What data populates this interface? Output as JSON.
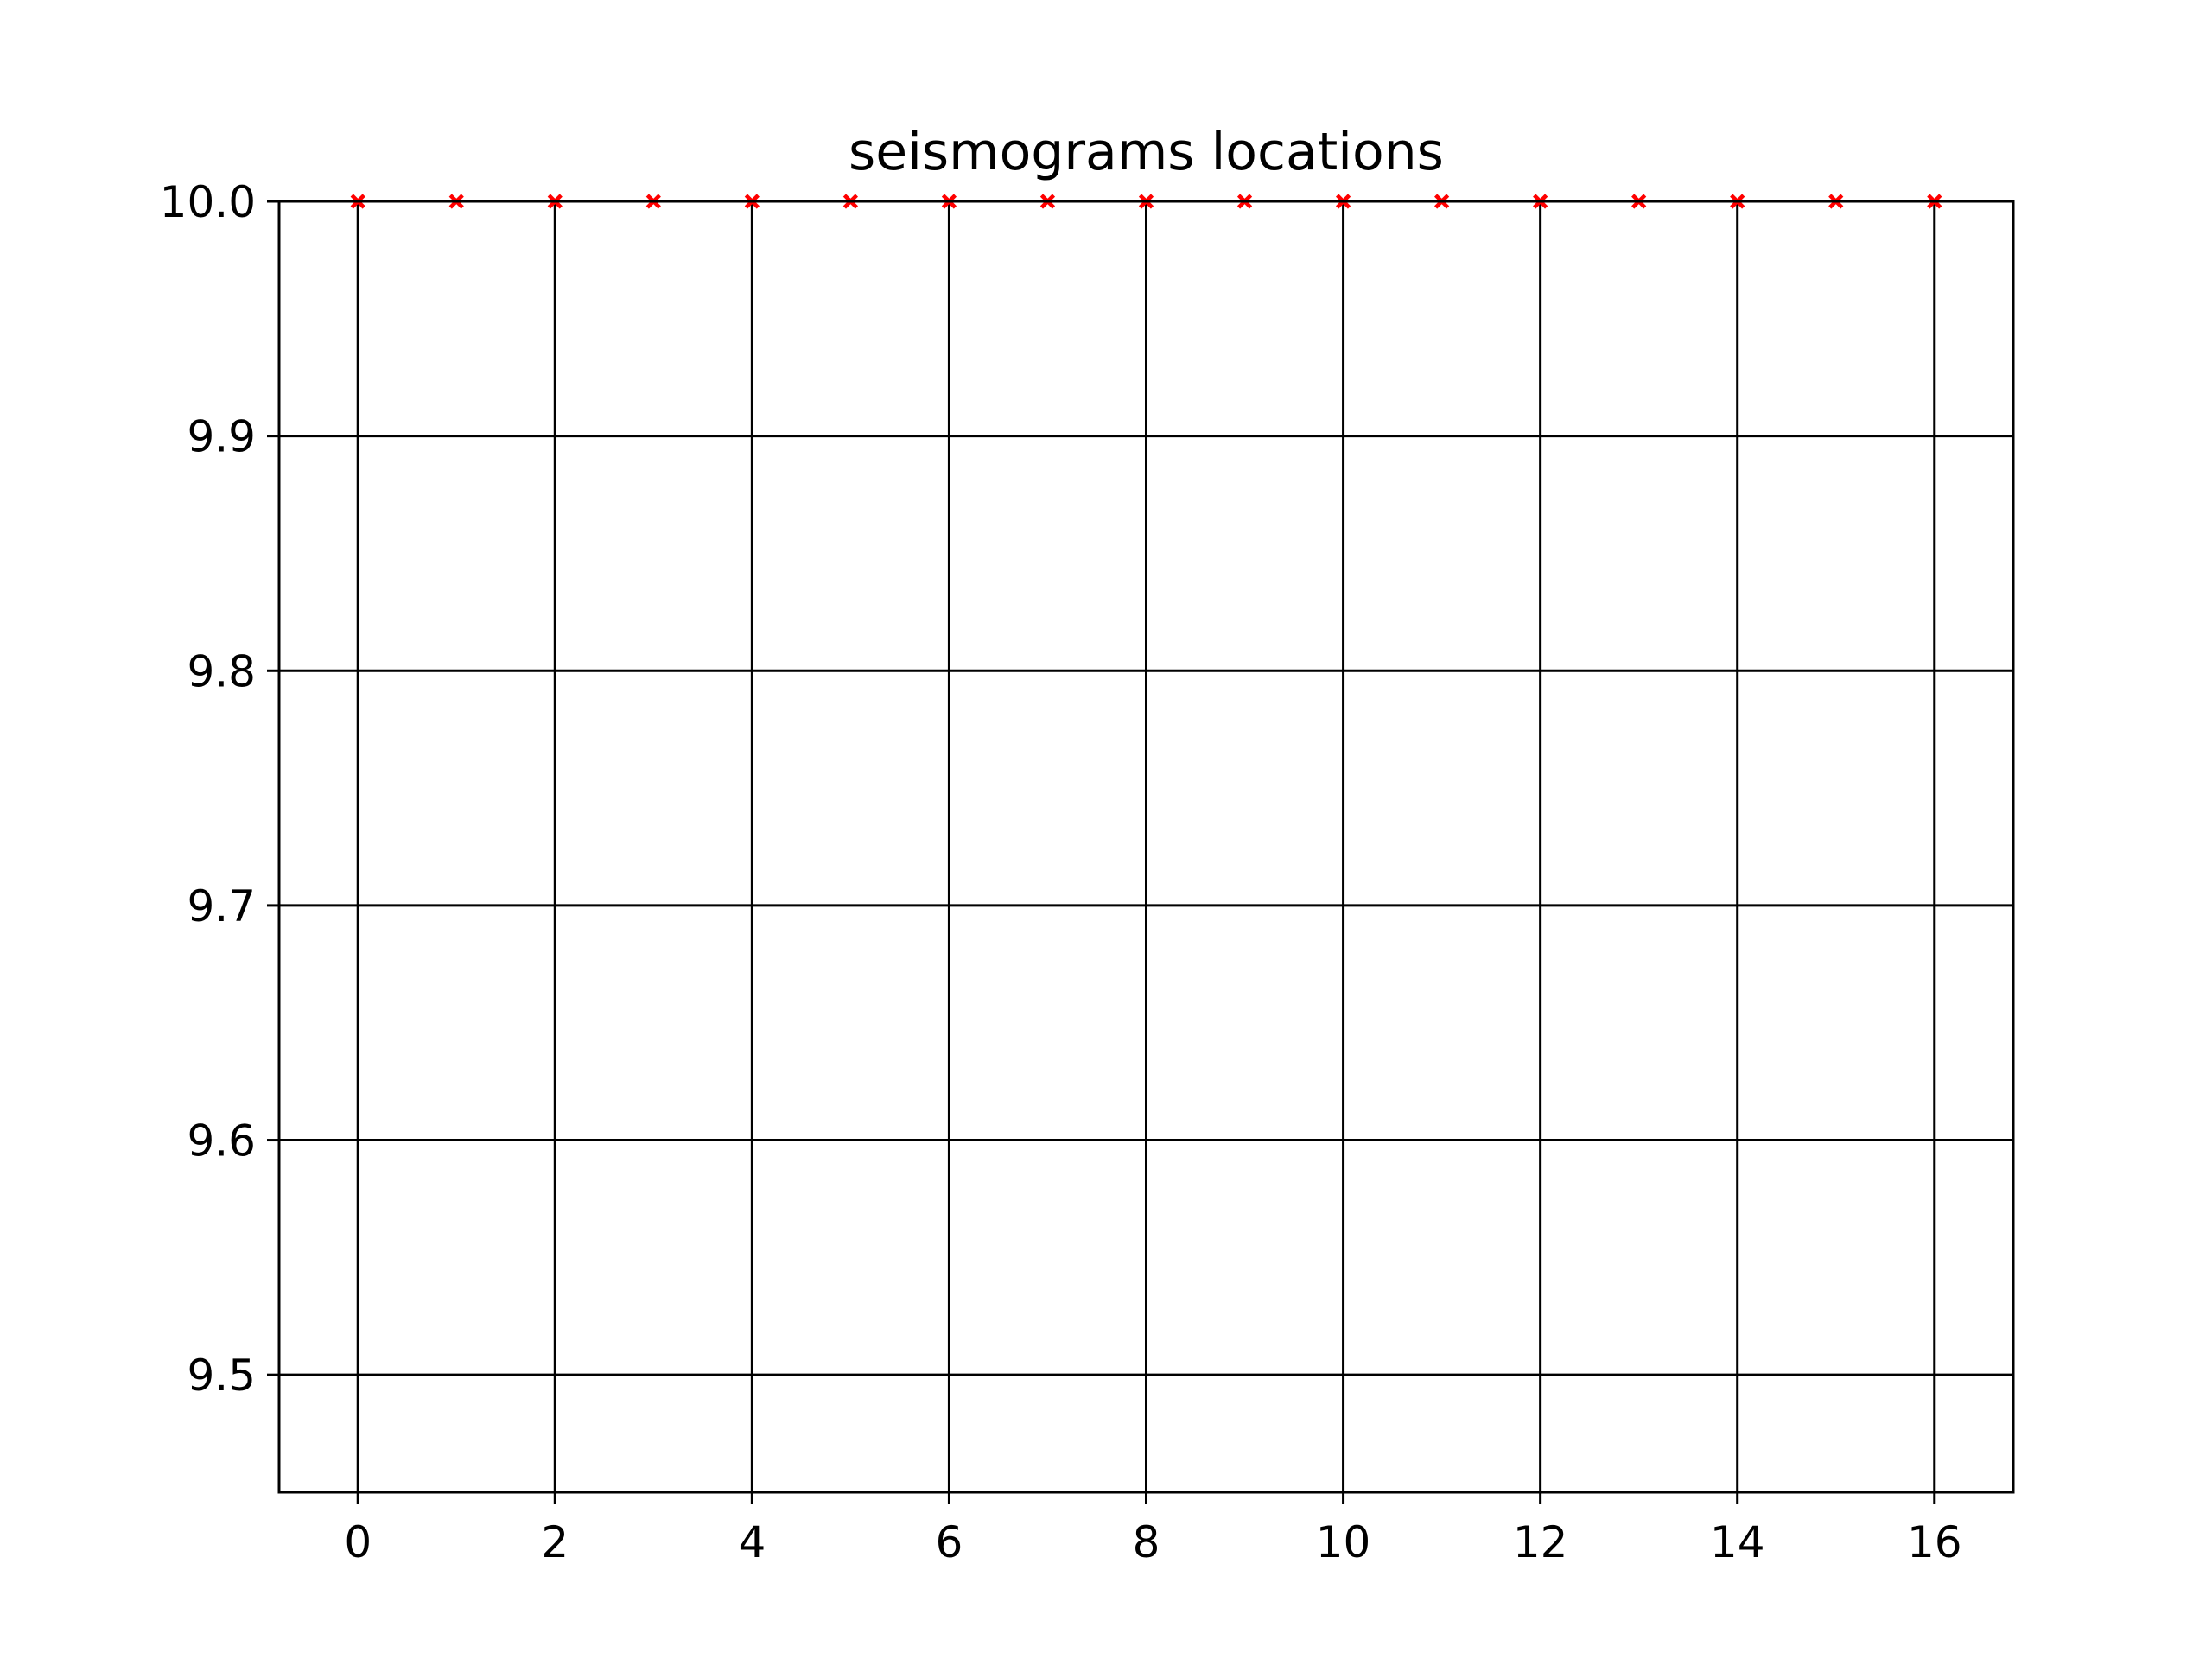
{
  "chart_data": {
    "type": "scatter",
    "title": "seismograms locations",
    "xlabel": "",
    "ylabel": "",
    "xlim": [
      -0.8,
      16.8
    ],
    "ylim": [
      9.45,
      10.0
    ],
    "grid": true,
    "xticks": [
      {
        "value": 0,
        "label": "0"
      },
      {
        "value": 2,
        "label": "2"
      },
      {
        "value": 4,
        "label": "4"
      },
      {
        "value": 6,
        "label": "6"
      },
      {
        "value": 8,
        "label": "8"
      },
      {
        "value": 10,
        "label": "10"
      },
      {
        "value": 12,
        "label": "12"
      },
      {
        "value": 14,
        "label": "14"
      },
      {
        "value": 16,
        "label": "16"
      }
    ],
    "yticks": [
      {
        "value": 9.5,
        "label": "9.5"
      },
      {
        "value": 9.6,
        "label": "9.6"
      },
      {
        "value": 9.7,
        "label": "9.7"
      },
      {
        "value": 9.8,
        "label": "9.8"
      },
      {
        "value": 9.9,
        "label": "9.9"
      },
      {
        "value": 10.0,
        "label": "10.0"
      }
    ],
    "series": [
      {
        "marker": "x",
        "color": "#ff0000",
        "x": [
          0,
          1,
          2,
          3,
          4,
          5,
          6,
          7,
          8,
          9,
          10,
          11,
          12,
          13,
          14,
          15,
          16
        ],
        "y": [
          10.0,
          10.0,
          10.0,
          10.0,
          10.0,
          10.0,
          10.0,
          10.0,
          10.0,
          10.0,
          10.0,
          10.0,
          10.0,
          10.0,
          10.0,
          10.0,
          10.0
        ]
      }
    ]
  }
}
